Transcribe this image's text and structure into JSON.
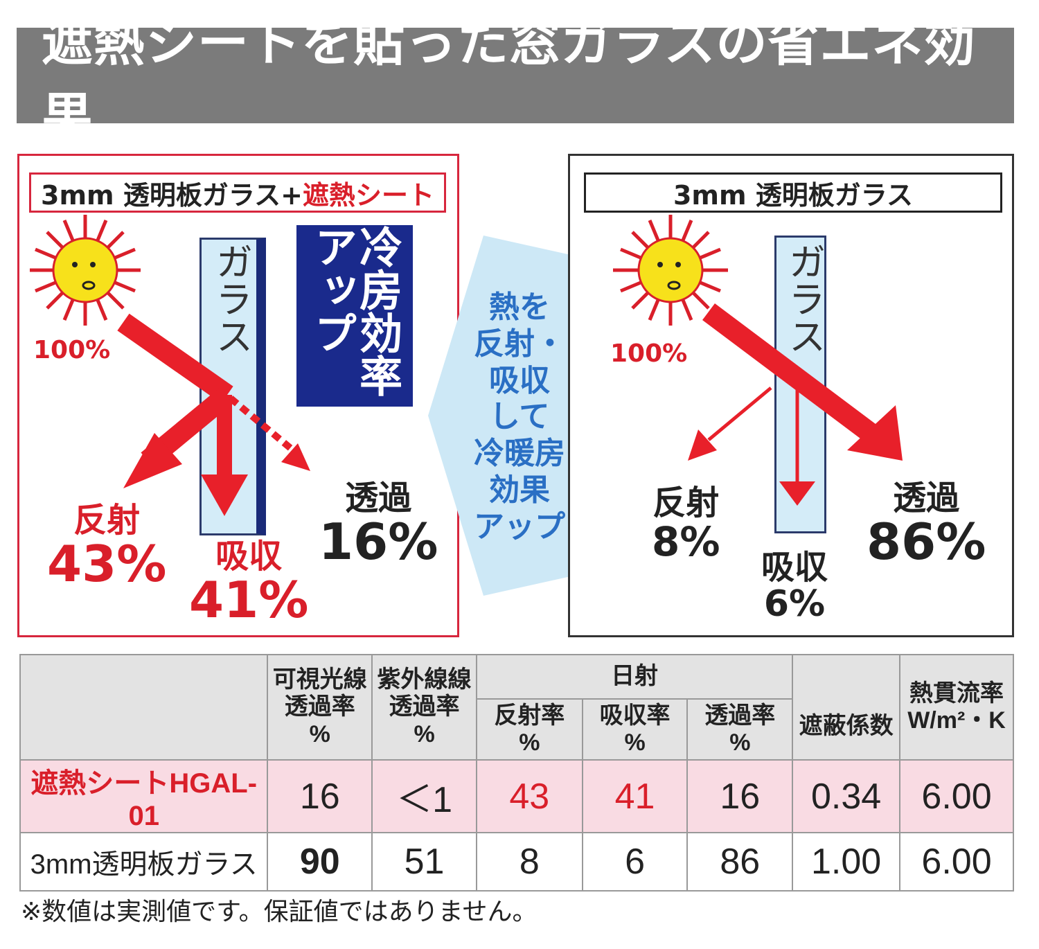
{
  "title": "遮熱シートを貼った窓ガラスの省エネ効果",
  "colors": {
    "accent_red": "#d91f2a",
    "navy": "#1a2a8c",
    "glass_blue": "#d4ecf8",
    "sun_yellow": "#f7e11b",
    "title_gray": "#7b7b7b"
  },
  "left_panel": {
    "label_plain": "3mm 透明板ガラス+",
    "label_red": "遮熱シート",
    "glass_text": "ガラス",
    "cool_text": "冷房効率アップ",
    "sun_pct": "100%",
    "reflect_label": "反射",
    "reflect_pct": "43%",
    "absorb_label": "吸収",
    "absorb_pct": "41%",
    "transmit_label": "透過",
    "transmit_pct": "16%"
  },
  "center_text": [
    "熱を",
    "反射・",
    "吸収",
    "して",
    "冷暖房",
    "効果",
    "アップ"
  ],
  "right_panel": {
    "label": "3mm 透明板ガラス",
    "glass_text": "ガラス",
    "sun_pct": "100%",
    "reflect_label": "反射",
    "reflect_pct": "8%",
    "absorb_label": "吸収",
    "absorb_pct": "6%",
    "transmit_label": "透過",
    "transmit_pct": "86%"
  },
  "table": {
    "headers": {
      "visible": [
        "可視光線",
        "透過率",
        "%"
      ],
      "uv": [
        "紫外線線",
        "透過率",
        "%"
      ],
      "solar": "日射",
      "reflect": [
        "反射率",
        "%"
      ],
      "absorb": [
        "吸収率",
        "%"
      ],
      "transmit": [
        "透過率",
        "%"
      ],
      "shading": "遮蔽係数",
      "heat": [
        "熱貫流率",
        "W/m²・K"
      ]
    },
    "rows": [
      {
        "name": "遮熱シートHGAL-01",
        "visible": "16",
        "uv": "＜1",
        "reflect": "43",
        "absorb": "41",
        "transmit": "16",
        "shading": "0.34",
        "heat": "6.00"
      },
      {
        "name": "3mm透明板ガラス",
        "visible": "90",
        "uv": "51",
        "reflect": "8",
        "absorb": "6",
        "transmit": "86",
        "shading": "1.00",
        "heat": "6.00"
      }
    ]
  },
  "note": "※数値は実測値です。保証値ではありません。"
}
